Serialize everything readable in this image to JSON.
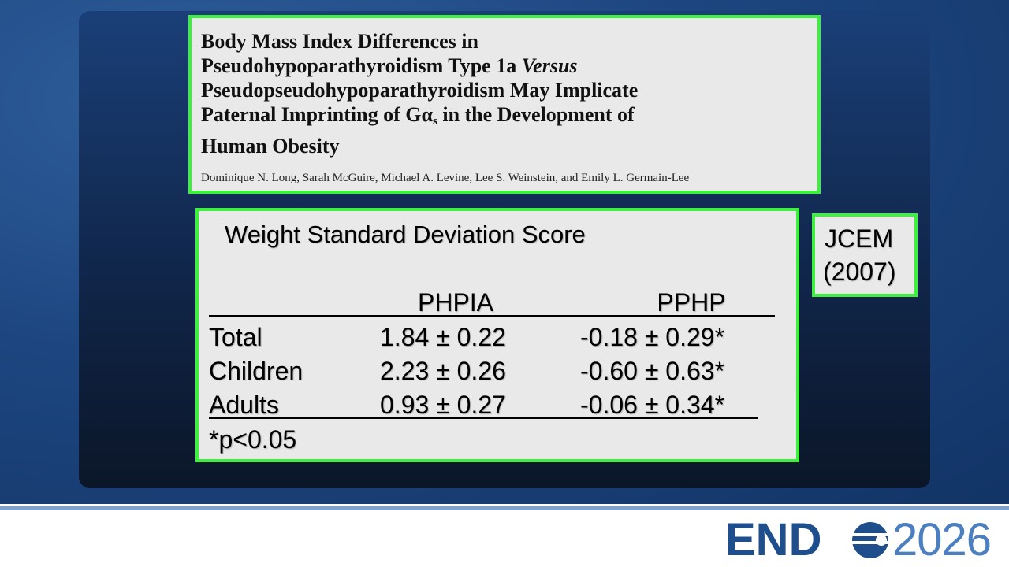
{
  "paper": {
    "title_lines": [
      [
        "Body Mass Index Differences in"
      ],
      [
        "Pseudohypoparathyroidism Type 1a ",
        "Versus"
      ],
      [
        "Pseudopseudohypoparathyroidism May Implicate"
      ],
      [
        "Paternal Imprinting of Gα",
        "s",
        " in the Development of"
      ],
      [
        "Human Obesity"
      ]
    ],
    "authors": "Dominique N. Long, Sarah McGuire, Michael A. Levine, Lee S. Weinstein, and Emily L. Germain-Lee"
  },
  "table": {
    "title": "Weight Standard Deviation Score",
    "headers": [
      "PHPIA",
      "PPHP"
    ],
    "rows": [
      [
        "Total",
        "1.84 ± 0.22",
        "-0.18 ± 0.29*"
      ],
      [
        "Children",
        "2.23 ± 0.26",
        "-0.60 ± 0.63*"
      ],
      [
        "Adults",
        "0.93 ± 0.27",
        "-0.06 ± 0.34*"
      ]
    ],
    "footnote": "*p<0.05"
  },
  "journal": [
    "JCEM",
    "(2007)"
  ],
  "logo": {
    "left": "END",
    "right": "2026"
  }
}
